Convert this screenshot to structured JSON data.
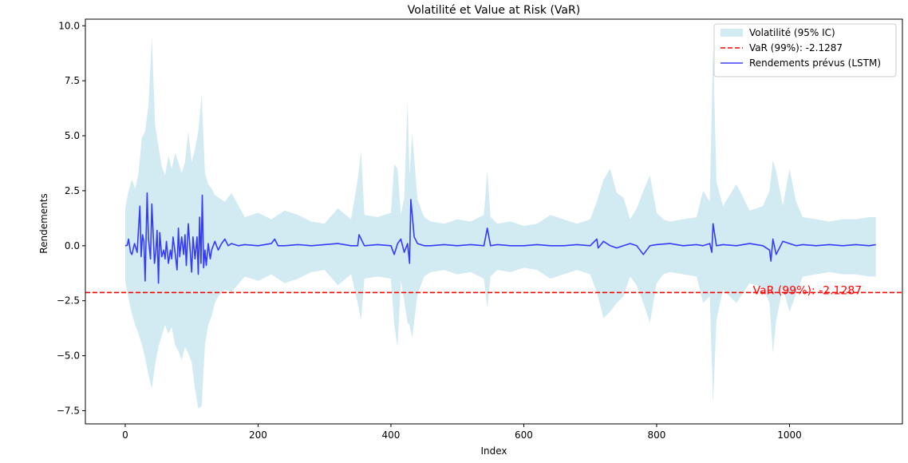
{
  "chart_data": {
    "type": "line",
    "title": "Volatilité et Value at Risk (VaR)",
    "xlabel": "Index",
    "ylabel": "Rendements",
    "xlim": [
      -60,
      1170
    ],
    "ylim": [
      -8.1,
      10.3
    ],
    "xticks": [
      0,
      200,
      400,
      600,
      800,
      1000
    ],
    "xtick_labels": [
      "0",
      "200",
      "400",
      "600",
      "800",
      "1000"
    ],
    "yticks": [
      -7.5,
      -5.0,
      -2.5,
      0.0,
      2.5,
      5.0,
      7.5,
      10.0
    ],
    "ytick_labels": [
      "−7.5",
      "−5.0",
      "−2.5",
      "0.0",
      "2.5",
      "5.0",
      "7.5",
      "10.0"
    ],
    "grid": false,
    "legend_position": "top-right",
    "legend": [
      {
        "label": "Volatilité (95% IC)",
        "kind": "band"
      },
      {
        "label": "VaR (99%): -2.1287",
        "kind": "dashed"
      },
      {
        "label": "Rendements prévus (LSTM)",
        "kind": "line"
      }
    ],
    "colors": {
      "band": "#add8e6",
      "var": "#ff0000",
      "series": "#0000ff"
    },
    "var": {
      "value": -2.1287,
      "annotation": "VaR (99%): -2.1287",
      "annotation_x": 945
    },
    "series": [
      {
        "name": "Volatilité (95% IC)",
        "kind": "band",
        "x": [
          0,
          5,
          10,
          15,
          20,
          25,
          30,
          35,
          40,
          45,
          50,
          55,
          60,
          65,
          70,
          75,
          80,
          85,
          90,
          95,
          100,
          105,
          110,
          115,
          120,
          125,
          130,
          135,
          140,
          150,
          160,
          180,
          200,
          220,
          240,
          260,
          280,
          300,
          320,
          340,
          350,
          355,
          360,
          380,
          400,
          405,
          410,
          415,
          420,
          425,
          428,
          432,
          440,
          450,
          460,
          480,
          500,
          520,
          540,
          545,
          550,
          560,
          580,
          600,
          620,
          640,
          660,
          680,
          700,
          710,
          720,
          730,
          740,
          750,
          760,
          770,
          780,
          790,
          800,
          810,
          820,
          840,
          860,
          870,
          880,
          885,
          890,
          900,
          920,
          940,
          960,
          970,
          975,
          980,
          990,
          1000,
          1010,
          1020,
          1040,
          1060,
          1080,
          1100,
          1120,
          1130
        ],
        "upper": [
          1.7,
          2.5,
          3.0,
          2.6,
          3.3,
          4.9,
          5.2,
          6.4,
          9.5,
          5.5,
          4.5,
          3.6,
          3.2,
          4.1,
          3.5,
          4.2,
          3.8,
          3.3,
          3.8,
          5.2,
          3.8,
          4.4,
          5.2,
          6.9,
          3.3,
          2.8,
          2.6,
          2.3,
          2.2,
          2.0,
          2.4,
          1.3,
          1.5,
          1.2,
          1.6,
          1.4,
          1.1,
          1.0,
          1.7,
          1.2,
          3.0,
          4.3,
          1.4,
          1.3,
          1.5,
          3.7,
          3.5,
          1.4,
          2.2,
          6.6,
          3.2,
          5.1,
          2.1,
          1.3,
          1.1,
          1.0,
          1.2,
          1.1,
          1.4,
          3.4,
          1.3,
          1.0,
          1.1,
          0.9,
          1.0,
          1.4,
          1.2,
          1.0,
          1.2,
          2.0,
          3.0,
          3.5,
          2.4,
          2.2,
          1.2,
          1.7,
          2.5,
          3.2,
          1.5,
          1.2,
          1.1,
          1.2,
          1.3,
          2.5,
          2.0,
          9.1,
          2.9,
          1.8,
          2.8,
          1.6,
          1.8,
          2.5,
          3.9,
          3.4,
          1.8,
          3.5,
          2.0,
          1.3,
          1.2,
          1.1,
          1.2,
          1.2,
          1.3,
          1.3
        ],
        "lower": [
          -1.6,
          -2.4,
          -3.1,
          -3.6,
          -4.0,
          -4.5,
          -5.1,
          -5.9,
          -6.5,
          -5.4,
          -4.6,
          -4.1,
          -3.6,
          -4.0,
          -3.7,
          -4.5,
          -4.8,
          -5.2,
          -4.6,
          -4.9,
          -5.3,
          -6.5,
          -7.4,
          -7.3,
          -4.5,
          -3.6,
          -3.2,
          -2.6,
          -2.3,
          -2.0,
          -2.1,
          -1.4,
          -1.6,
          -1.3,
          -1.7,
          -1.5,
          -1.2,
          -1.1,
          -1.8,
          -1.3,
          -2.6,
          -3.4,
          -1.5,
          -1.4,
          -1.5,
          -3.6,
          -4.6,
          -1.6,
          -2.5,
          -3.5,
          -3.6,
          -4.2,
          -2.2,
          -1.4,
          -1.2,
          -1.1,
          -1.3,
          -1.2,
          -1.5,
          -2.8,
          -1.4,
          -1.1,
          -1.2,
          -1.0,
          -1.1,
          -1.5,
          -1.3,
          -1.1,
          -1.3,
          -2.1,
          -3.3,
          -3.0,
          -2.6,
          -2.3,
          -1.4,
          -1.8,
          -2.6,
          -3.5,
          -1.7,
          -1.3,
          -1.2,
          -1.3,
          -1.4,
          -2.6,
          -2.3,
          -7.2,
          -3.4,
          -2.0,
          -2.6,
          -1.7,
          -1.9,
          -2.6,
          -4.9,
          -3.4,
          -1.9,
          -3.0,
          -2.2,
          -1.4,
          -1.3,
          -1.2,
          -1.3,
          -1.3,
          -1.4,
          -1.4
        ]
      },
      {
        "name": "Rendements prévus (LSTM)",
        "kind": "line",
        "x": [
          0,
          3,
          5,
          8,
          10,
          14,
          18,
          22,
          24,
          26,
          28,
          30,
          33,
          35,
          38,
          40,
          42,
          44,
          46,
          48,
          50,
          52,
          55,
          58,
          60,
          62,
          65,
          68,
          70,
          72,
          75,
          78,
          80,
          82,
          85,
          88,
          90,
          92,
          95,
          98,
          100,
          102,
          105,
          108,
          110,
          112,
          114,
          116,
          118,
          120,
          122,
          125,
          128,
          130,
          135,
          140,
          145,
          150,
          155,
          160,
          170,
          180,
          200,
          220,
          225,
          230,
          240,
          260,
          280,
          300,
          320,
          340,
          350,
          352,
          360,
          380,
          400,
          405,
          410,
          415,
          420,
          425,
          428,
          430,
          435,
          440,
          450,
          460,
          480,
          500,
          520,
          540,
          545,
          550,
          560,
          580,
          600,
          620,
          640,
          660,
          680,
          700,
          710,
          712,
          720,
          730,
          740,
          750,
          760,
          770,
          780,
          790,
          800,
          820,
          840,
          860,
          870,
          880,
          883,
          885,
          888,
          890,
          900,
          920,
          940,
          960,
          970,
          972,
          975,
          980,
          990,
          1000,
          1010,
          1020,
          1040,
          1060,
          1080,
          1100,
          1120,
          1130
        ],
        "y": [
          0.0,
          0.02,
          0.3,
          -0.3,
          -0.4,
          0.1,
          -0.3,
          1.8,
          -0.5,
          0.5,
          0.2,
          -1.6,
          2.4,
          0.3,
          -0.6,
          1.9,
          0.6,
          -0.8,
          -0.3,
          0.7,
          -1.7,
          0.6,
          -0.5,
          -0.2,
          -0.6,
          0.2,
          -0.8,
          -0.2,
          -0.6,
          0.4,
          -0.3,
          -1.1,
          0.8,
          -0.5,
          0.4,
          -0.4,
          0.5,
          -0.9,
          1.0,
          -0.3,
          -1.2,
          0.4,
          -0.6,
          0.4,
          -1.3,
          1.3,
          -0.8,
          2.3,
          -1.0,
          -0.2,
          -0.9,
          0.1,
          -0.6,
          -0.2,
          0.2,
          -0.2,
          0.1,
          0.3,
          0.0,
          0.1,
          0.0,
          0.05,
          0.0,
          0.1,
          0.3,
          0.0,
          0.0,
          0.05,
          0.0,
          0.05,
          0.1,
          0.0,
          0.0,
          0.5,
          0.0,
          0.05,
          0.0,
          -0.4,
          0.1,
          0.3,
          -0.3,
          0.1,
          -0.8,
          2.1,
          0.4,
          0.1,
          0.0,
          0.0,
          0.05,
          0.0,
          0.05,
          0.0,
          0.8,
          0.0,
          0.05,
          0.0,
          0.0,
          0.05,
          0.0,
          0.0,
          0.05,
          0.0,
          0.3,
          -0.1,
          0.2,
          0.0,
          -0.1,
          0.0,
          0.1,
          0.0,
          -0.4,
          0.0,
          0.05,
          0.1,
          0.0,
          0.05,
          0.0,
          0.1,
          -0.3,
          1.0,
          0.4,
          0.0,
          0.05,
          0.0,
          0.1,
          0.0,
          -0.2,
          -0.7,
          0.3,
          -0.4,
          0.2,
          0.1,
          0.0,
          0.05,
          0.0,
          0.05,
          0.0,
          0.05,
          0.0,
          0.05
        ]
      }
    ]
  }
}
